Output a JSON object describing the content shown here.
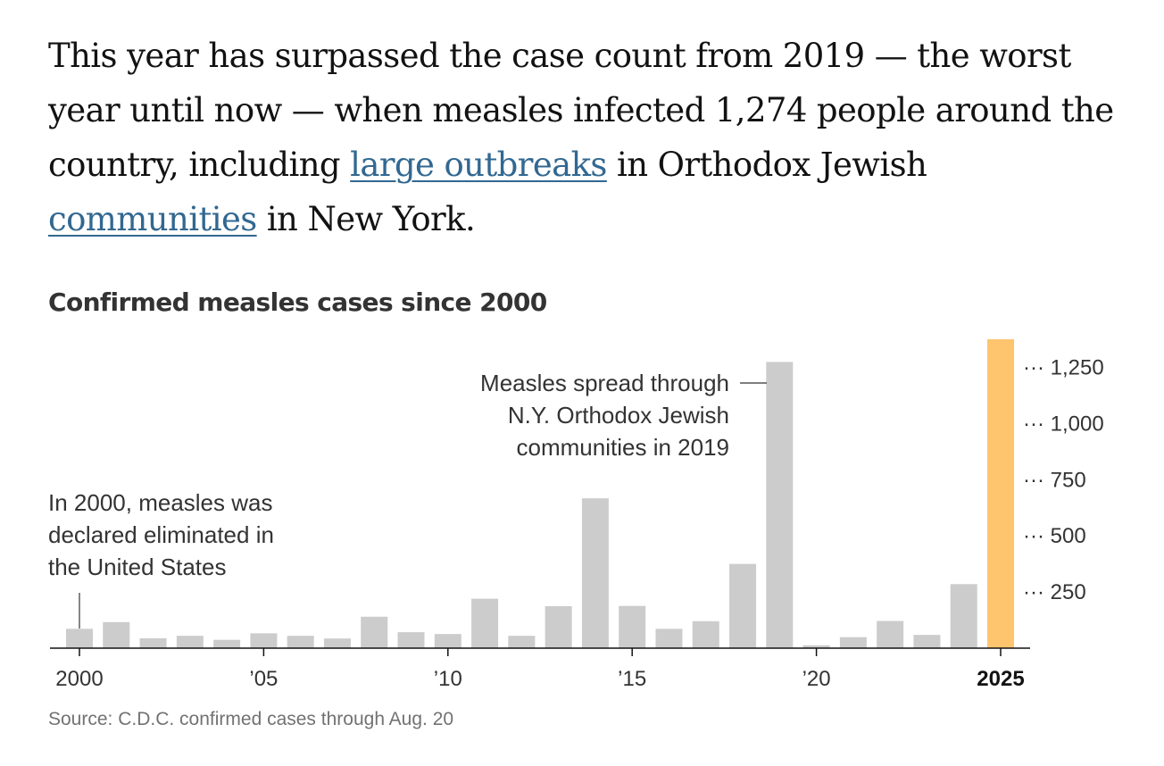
{
  "intro": {
    "text_before": "This year has surpassed the case count from 2019 — the worst year until now — when measles infected 1,274 people around the country, including ",
    "link1": "large outbreaks",
    "text_middle": " in Orthodox Jewish ",
    "link2": "communities",
    "text_after": " in New York."
  },
  "chart_title": "Confirmed measles cases since 2000",
  "source": "Source: C.D.C. confirmed cases through Aug. 20",
  "colors": {
    "bar": "#cccccc",
    "highlight": "#fec56e",
    "link": "#326891",
    "axis": "#121212"
  },
  "chart_data": {
    "type": "bar",
    "title": "Confirmed measles cases since 2000",
    "categories": [
      "2000",
      "2001",
      "2002",
      "2003",
      "2004",
      "2005",
      "2006",
      "2007",
      "2008",
      "2009",
      "2010",
      "2011",
      "2012",
      "2013",
      "2014",
      "2015",
      "2016",
      "2017",
      "2018",
      "2019",
      "2020",
      "2021",
      "2022",
      "2023",
      "2024",
      "2025"
    ],
    "values": [
      86,
      116,
      44,
      55,
      37,
      66,
      55,
      43,
      140,
      71,
      63,
      220,
      55,
      187,
      667,
      188,
      86,
      120,
      375,
      1274,
      13,
      49,
      121,
      59,
      285,
      1375
    ],
    "highlight_index": 25,
    "x_tick_labels": [
      {
        "index": 0,
        "label": "2000"
      },
      {
        "index": 5,
        "label": "’05"
      },
      {
        "index": 10,
        "label": "’10"
      },
      {
        "index": 15,
        "label": "’15"
      },
      {
        "index": 20,
        "label": "’20"
      },
      {
        "index": 25,
        "label": "2025",
        "bold": true
      }
    ],
    "y_ticks": [
      {
        "value": 250,
        "label": "250"
      },
      {
        "value": 500,
        "label": "500"
      },
      {
        "value": 750,
        "label": "750"
      },
      {
        "value": 1000,
        "label": "1,000"
      },
      {
        "value": 1250,
        "label": "1,250"
      }
    ],
    "y_tick_prefix": "···",
    "ylim": [
      0,
      1375
    ],
    "annotations": [
      {
        "index": 0,
        "lines": [
          "In 2000, measles was",
          "declared eliminated in",
          "the United States"
        ]
      },
      {
        "index": 19,
        "lines": [
          "Measles spread through",
          "N.Y. Orthodox Jewish",
          "communities in 2019"
        ]
      }
    ]
  }
}
